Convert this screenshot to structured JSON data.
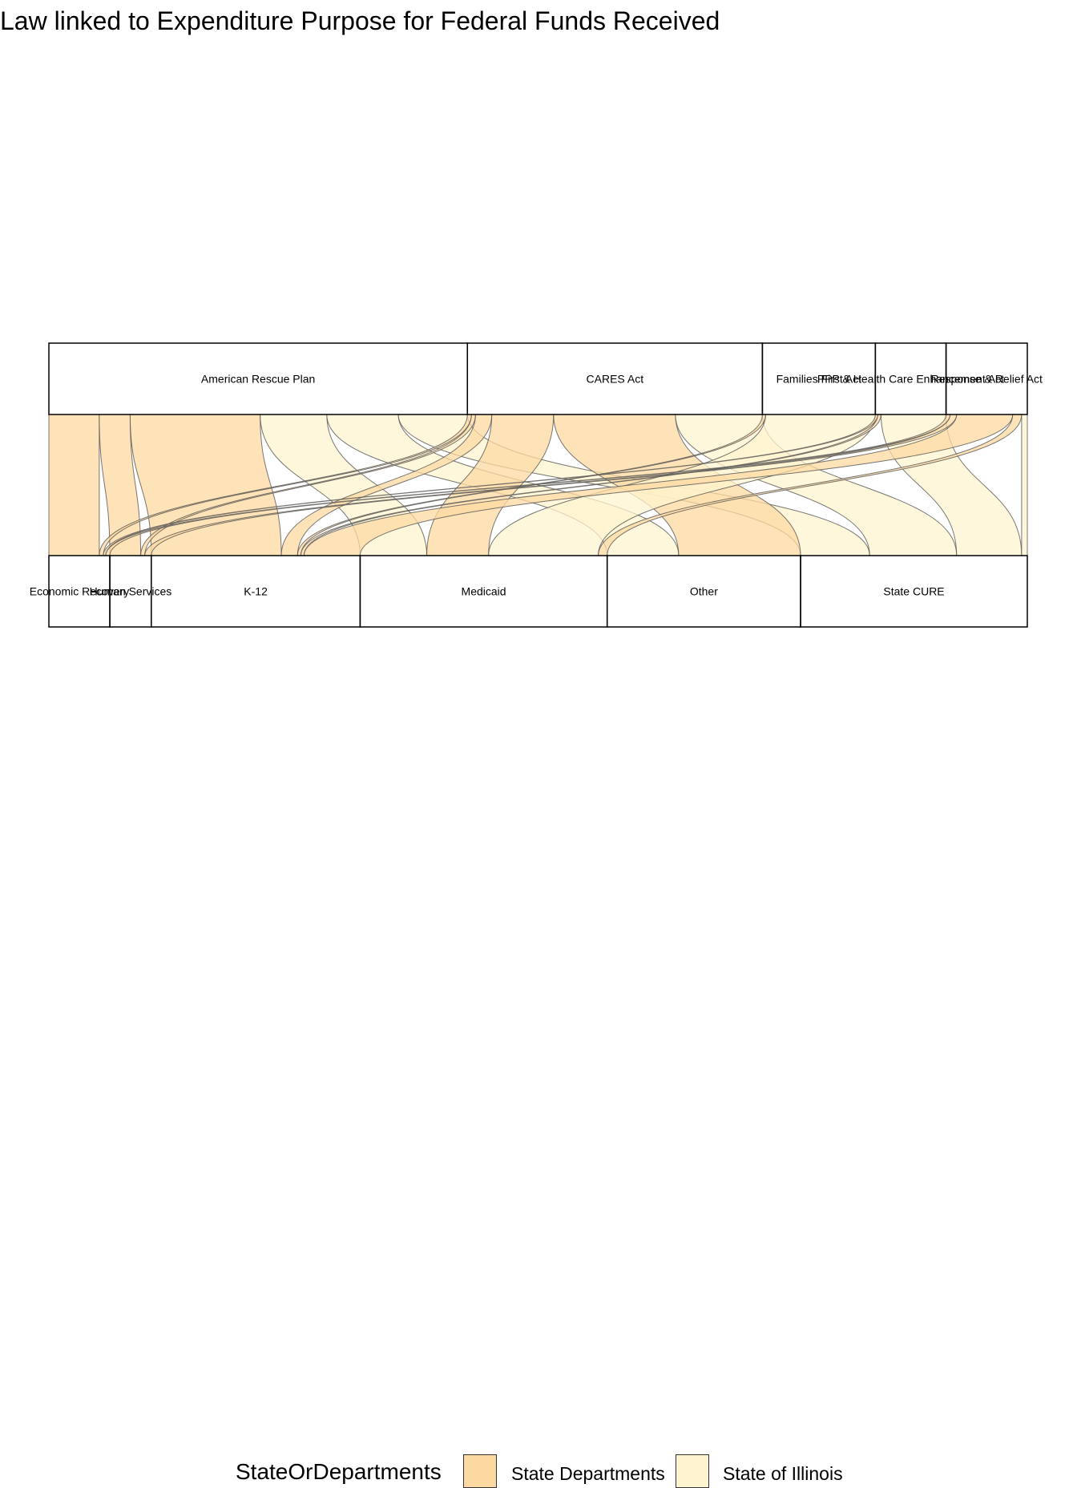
{
  "title": "Law linked to Expenditure Purpose for Federal Funds Received",
  "colors": {
    "State Departments": "#FDD9A2",
    "State of Illinois": "#FFF4CF"
  },
  "legend": {
    "title": "StateOrDepartments",
    "items": [
      {
        "label": "State Departments",
        "color": "#FDD9A2"
      },
      {
        "label": "State of Illinois",
        "color": "#FFF4CF"
      }
    ]
  },
  "chart_data": {
    "type": "alluvial",
    "axes": [
      [
        "American Rescue Plan",
        "CARES Act",
        "Families First Act",
        "PPP & Health Care Enhancement Act",
        "Response & Relief Act"
      ],
      [
        "Economic Recovery",
        "Human Services",
        "K-12",
        "Medicaid",
        "Other",
        "State CURE"
      ]
    ],
    "flows": [
      {
        "law": "American Rescue Plan",
        "purpose": "Economic Recovery",
        "group": "State Departments",
        "value": 62
      },
      {
        "law": "American Rescue Plan",
        "purpose": "Human Services",
        "group": "State Departments",
        "value": 38
      },
      {
        "law": "American Rescue Plan",
        "purpose": "K-12",
        "group": "State Departments",
        "value": 160
      },
      {
        "law": "American Rescue Plan",
        "purpose": "Medicaid",
        "group": "State of Illinois",
        "value": 82
      },
      {
        "law": "American Rescue Plan",
        "purpose": "Other",
        "group": "State of Illinois",
        "value": 88
      },
      {
        "law": "American Rescue Plan",
        "purpose": "State CURE",
        "group": "State of Illinois",
        "value": 85
      },
      {
        "law": "CARES Act",
        "purpose": "Economic Recovery",
        "group": "State Departments",
        "value": 5
      },
      {
        "law": "CARES Act",
        "purpose": "Human Services",
        "group": "State Departments",
        "value": 5
      },
      {
        "law": "CARES Act",
        "purpose": "K-12",
        "group": "State Departments",
        "value": 20
      },
      {
        "law": "CARES Act",
        "purpose": "Medicaid",
        "group": "State Departments",
        "value": 76
      },
      {
        "law": "CARES Act",
        "purpose": "Other",
        "group": "State Departments",
        "value": 150
      },
      {
        "law": "CARES Act",
        "purpose": "State CURE",
        "group": "State of Illinois",
        "value": 107
      },
      {
        "law": "Families First Act",
        "purpose": "Medicaid",
        "group": "State of Illinois",
        "value": 135
      },
      {
        "law": "Families First Act",
        "purpose": "K-12",
        "group": "State Departments",
        "value": 4
      },
      {
        "law": "PPP & Health Care Enhancement Act",
        "purpose": "K-12",
        "group": "State Departments",
        "value": 4
      },
      {
        "law": "PPP & Health Care Enhancement Act",
        "purpose": "Economic Recovery",
        "group": "State Departments",
        "value": 3
      },
      {
        "law": "PPP & Health Care Enhancement Act",
        "purpose": "State CURE",
        "group": "State of Illinois",
        "value": 80
      },
      {
        "law": "Response & Relief Act",
        "purpose": "Economic Recovery",
        "group": "State Departments",
        "value": 5
      },
      {
        "law": "Response & Relief Act",
        "purpose": "Human Services",
        "group": "State Departments",
        "value": 8
      },
      {
        "law": "Response & Relief Act",
        "purpose": "K-12",
        "group": "State Departments",
        "value": 69
      },
      {
        "law": "Response & Relief Act",
        "purpose": "Medicaid",
        "group": "State Departments",
        "value": 11
      },
      {
        "law": "Response & Relief Act",
        "purpose": "State CURE",
        "group": "State of Illinois",
        "value": 7
      }
    ]
  }
}
